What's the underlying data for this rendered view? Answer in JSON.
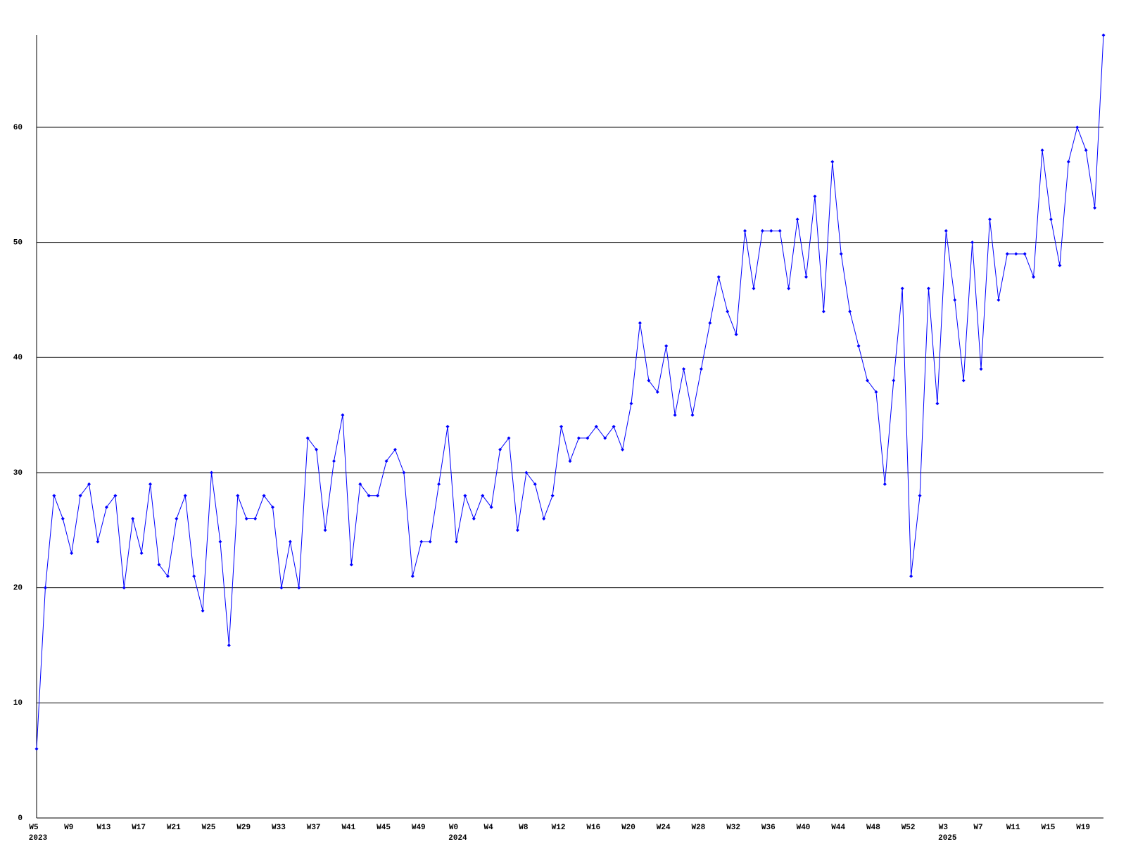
{
  "chart_data": {
    "type": "line",
    "categories": [
      "W5",
      null,
      null,
      null,
      "W9",
      null,
      null,
      null,
      "W13",
      null,
      null,
      null,
      "W17",
      null,
      null,
      null,
      "W21",
      null,
      null,
      null,
      "W25",
      null,
      null,
      null,
      "W29",
      null,
      null,
      null,
      "W33",
      null,
      null,
      null,
      "W37",
      null,
      null,
      null,
      "W41",
      null,
      null,
      null,
      "W45",
      null,
      null,
      null,
      "W49",
      null,
      null,
      null,
      "W0",
      null,
      null,
      null,
      "W4",
      null,
      null,
      null,
      "W8",
      null,
      null,
      null,
      "W12",
      null,
      null,
      null,
      "W16",
      null,
      null,
      null,
      "W20",
      null,
      null,
      null,
      "W24",
      null,
      null,
      null,
      "W28",
      null,
      null,
      null,
      "W32",
      null,
      null,
      null,
      "W36",
      null,
      null,
      null,
      "W40",
      null,
      null,
      null,
      "W44",
      null,
      null,
      null,
      "W48",
      null,
      null,
      null,
      "W52",
      null,
      null,
      null,
      "W3",
      null,
      null,
      null,
      "W7",
      null,
      null,
      null,
      "W11",
      null,
      null,
      null,
      "W15",
      null,
      null,
      null,
      "W19",
      null,
      null
    ],
    "category_years": [
      "2023",
      null,
      null,
      null,
      null,
      null,
      null,
      null,
      null,
      null,
      null,
      null,
      null,
      null,
      null,
      null,
      null,
      null,
      null,
      null,
      null,
      null,
      null,
      null,
      null,
      null,
      null,
      null,
      null,
      null,
      null,
      null,
      null,
      null,
      null,
      null,
      null,
      null,
      null,
      null,
      null,
      null,
      null,
      null,
      null,
      null,
      null,
      null,
      "2024",
      null,
      null,
      null,
      null,
      null,
      null,
      null,
      null,
      null,
      null,
      null,
      null,
      null,
      null,
      null,
      null,
      null,
      null,
      null,
      null,
      null,
      null,
      null,
      null,
      null,
      null,
      null,
      null,
      null,
      null,
      null,
      null,
      null,
      null,
      null,
      null,
      null,
      null,
      null,
      null,
      null,
      null,
      null,
      null,
      null,
      null,
      null,
      null,
      null,
      null,
      null,
      null,
      null,
      null,
      null,
      "2025",
      null,
      null,
      null,
      null,
      null,
      null,
      null,
      null,
      null,
      null,
      null,
      null,
      null,
      null,
      null,
      null,
      null,
      null
    ],
    "series": [
      {
        "color": "#0000ff",
        "values": [
          6,
          20,
          28,
          26,
          23,
          28,
          29,
          24,
          27,
          28,
          20,
          26,
          23,
          29,
          22,
          21,
          26,
          28,
          21,
          18,
          30,
          24,
          15,
          28,
          26,
          26,
          28,
          27,
          20,
          24,
          20,
          33,
          32,
          25,
          31,
          35,
          22,
          29,
          28,
          28,
          31,
          32,
          30,
          21,
          24,
          24,
          29,
          34,
          24,
          28,
          26,
          28,
          27,
          32,
          33,
          25,
          30,
          29,
          26,
          28,
          34,
          31,
          33,
          33,
          34,
          33,
          34,
          32,
          36,
          43,
          38,
          37,
          41,
          35,
          39,
          35,
          39,
          43,
          47,
          44,
          42,
          51,
          46,
          51,
          51,
          51,
          46,
          52,
          47,
          54,
          44,
          57,
          49,
          44,
          41,
          38,
          37,
          29,
          38,
          46,
          21,
          28,
          46,
          36,
          51,
          45,
          38,
          50,
          39,
          52,
          45,
          49,
          49,
          49,
          47,
          58,
          52,
          48,
          57,
          60,
          58,
          53,
          68
        ]
      }
    ],
    "ylim": [
      0,
      68
    ],
    "yticks": [
      0,
      10,
      20,
      30,
      40,
      50,
      60
    ],
    "grid": true
  }
}
